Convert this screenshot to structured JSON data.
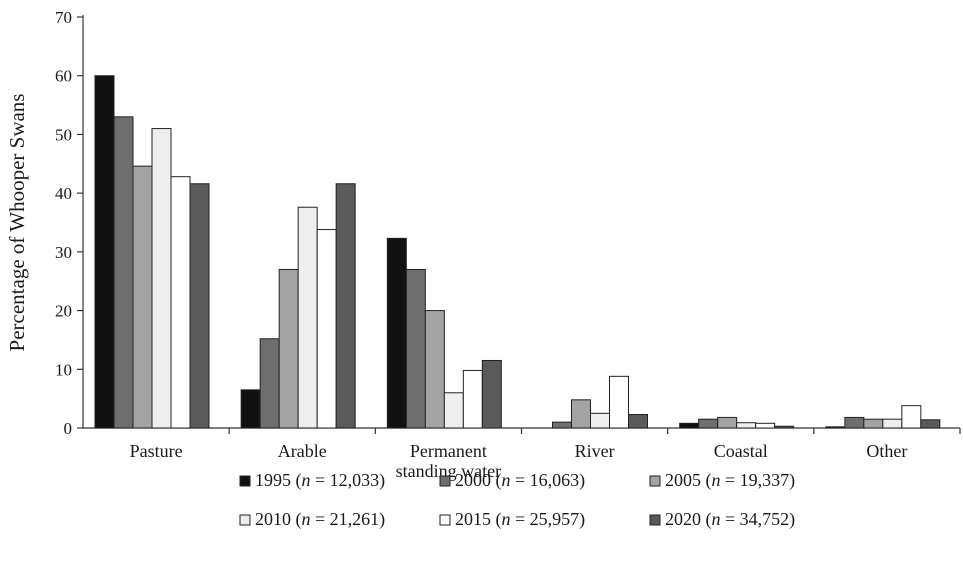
{
  "chart_data": {
    "type": "bar",
    "ylabel": "Percentage of Whooper Swans",
    "ylim": [
      0,
      70
    ],
    "yticks": [
      "0",
      "10",
      "20",
      "30",
      "40",
      "50",
      "60",
      "70"
    ],
    "grid": false,
    "legend_position": "bottom",
    "categories": [
      [
        "Pasture"
      ],
      [
        "Arable"
      ],
      [
        "Permanent",
        "standing water"
      ],
      [
        "River"
      ],
      [
        "Coastal"
      ],
      [
        "Other"
      ]
    ],
    "series": [
      {
        "year": "1995",
        "n": "12,033",
        "color": "#111111",
        "values": [
          60,
          6.5,
          32.3,
          0,
          0.8,
          0.2
        ]
      },
      {
        "year": "2000",
        "n": "16,063",
        "color": "#6e6e6e",
        "values": [
          53,
          15.2,
          27,
          1,
          1.5,
          1.8
        ]
      },
      {
        "year": "2005",
        "n": "19,337",
        "color": "#a3a3a3",
        "values": [
          44.6,
          27,
          20,
          4.8,
          1.8,
          1.5
        ]
      },
      {
        "year": "2010",
        "n": "21,261",
        "color": "#eeeeee",
        "values": [
          51,
          37.6,
          6,
          2.5,
          0.9,
          1.5
        ]
      },
      {
        "year": "2015",
        "n": "25,957",
        "color": "#ffffff",
        "values": [
          42.8,
          33.8,
          9.8,
          8.8,
          0.8,
          3.8
        ]
      },
      {
        "year": "2020",
        "n": "34,752",
        "color": "#5a5a5a",
        "values": [
          41.6,
          41.6,
          11.5,
          2.3,
          0.3,
          1.4
        ]
      }
    ],
    "legend_template": {
      "prefix": " (",
      "n_symbol": "n",
      "equals": " = ",
      "suffix": ")"
    }
  }
}
